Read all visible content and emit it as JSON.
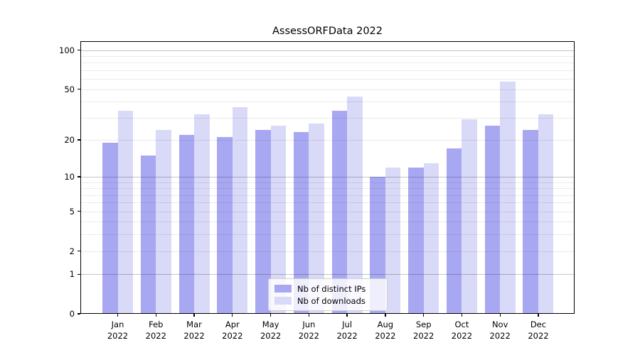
{
  "chart_data": {
    "type": "bar",
    "title": "AssessORFData 2022",
    "categories": [
      "Jan",
      "Feb",
      "Mar",
      "Apr",
      "May",
      "Jun",
      "Jul",
      "Aug",
      "Sep",
      "Oct",
      "Nov",
      "Dec"
    ],
    "category_year": "2022",
    "series": [
      {
        "name": "Nb of distinct IPs",
        "color": "#a8a8f2",
        "values": [
          19,
          15,
          22,
          21,
          24,
          23,
          34,
          10,
          12,
          17,
          26,
          24
        ]
      },
      {
        "name": "Nb of downloads",
        "color": "#d9d9f8",
        "values": [
          34,
          24,
          32,
          36,
          26,
          27,
          44,
          12,
          13,
          29,
          57,
          32
        ]
      }
    ],
    "xlabel": "",
    "ylabel": "",
    "yscale": "log10(1+v)",
    "ylim": [
      0,
      117
    ],
    "yticks": [
      0,
      1,
      2,
      5,
      10,
      20,
      50,
      100
    ],
    "major_gridlines": [
      1,
      10,
      100
    ],
    "minor_gridlines": [
      2,
      3,
      4,
      5,
      6,
      7,
      8,
      9,
      20,
      30,
      40,
      50,
      60,
      70,
      80,
      90
    ],
    "grid": "on",
    "grid_above_bars": true,
    "legend_position": "lower center"
  }
}
